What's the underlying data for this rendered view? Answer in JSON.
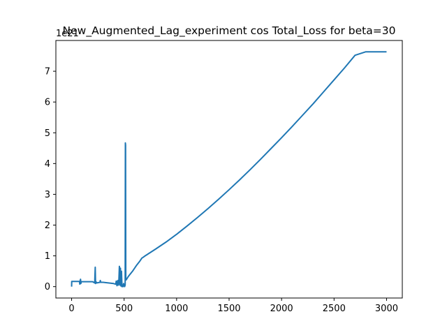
{
  "chart_data": {
    "type": "line",
    "title": "New_Augmented_Lag_experiment cos Total_Loss for beta=30",
    "xlabel": "",
    "ylabel": "",
    "y_offset_label": "1e21",
    "xlim": [
      -150,
      3150
    ],
    "ylim": [
      -0.37,
      8.0
    ],
    "x_ticks": [
      0,
      500,
      1000,
      1500,
      2000,
      2500,
      3000
    ],
    "y_ticks": [
      0,
      1,
      2,
      3,
      4,
      5,
      6,
      7
    ],
    "grid": false,
    "legend": "none",
    "series": [
      {
        "color": "#1f77b4",
        "x": [
          0,
          1,
          3,
          40,
          60,
          75,
          78,
          82,
          85,
          88,
          92,
          100,
          200,
          220,
          222,
          225,
          228,
          232,
          240,
          270,
          273,
          277,
          300,
          400,
          420,
          425,
          432,
          440,
          445,
          450,
          455,
          460,
          465,
          470,
          475,
          480,
          485,
          490,
          495,
          500,
          505,
          510,
          512,
          514,
          516,
          520,
          540,
          580,
          620,
          650,
          670,
          680,
          700,
          800,
          900,
          1000,
          1100,
          1200,
          1300,
          1400,
          1500,
          1600,
          1700,
          1800,
          1900,
          2000,
          2100,
          2200,
          2300,
          2400,
          2500,
          2600,
          2700,
          2800,
          2900,
          3000
        ],
        "y": [
          0.0,
          0.17,
          0.17,
          0.17,
          0.17,
          0.17,
          0.08,
          0.2,
          0.24,
          0.1,
          0.16,
          0.16,
          0.16,
          0.12,
          0.35,
          0.63,
          0.1,
          0.16,
          0.12,
          0.14,
          0.2,
          0.14,
          0.14,
          0.1,
          0.08,
          0.18,
          0.03,
          0.2,
          0.05,
          0.2,
          0.66,
          0.05,
          0.6,
          0.02,
          0.5,
          0.0,
          0.05,
          0.0,
          0.1,
          0.05,
          0.0,
          0.05,
          4.67,
          4.6,
          0.28,
          0.22,
          0.33,
          0.5,
          0.7,
          0.83,
          0.93,
          0.95,
          1.0,
          1.22,
          1.45,
          1.7,
          1.97,
          2.25,
          2.54,
          2.84,
          3.15,
          3.47,
          3.8,
          4.14,
          4.49,
          4.84,
          5.2,
          5.57,
          5.94,
          6.33,
          6.72,
          7.11,
          7.52,
          7.63,
          7.63,
          7.63
        ]
      }
    ]
  }
}
